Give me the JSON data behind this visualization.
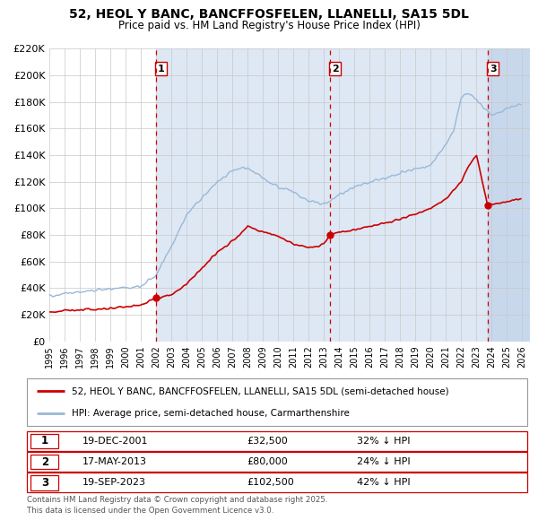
{
  "title": "52, HEOL Y BANC, BANCFFOSFELEN, LLANELLI, SA15 5DL",
  "subtitle": "Price paid vs. HM Land Registry's House Price Index (HPI)",
  "ylim": [
    0,
    220000
  ],
  "yticks": [
    0,
    20000,
    40000,
    60000,
    80000,
    100000,
    120000,
    140000,
    160000,
    180000,
    200000,
    220000
  ],
  "ytick_labels": [
    "£0",
    "£20K",
    "£40K",
    "£60K",
    "£80K",
    "£100K",
    "£120K",
    "£140K",
    "£160K",
    "£180K",
    "£200K",
    "£220K"
  ],
  "xlim_start": 1995.0,
  "xlim_end": 2026.5,
  "xticks": [
    1995,
    1996,
    1997,
    1998,
    1999,
    2000,
    2001,
    2002,
    2003,
    2004,
    2005,
    2006,
    2007,
    2008,
    2009,
    2010,
    2011,
    2012,
    2013,
    2014,
    2015,
    2016,
    2017,
    2018,
    2019,
    2020,
    2021,
    2022,
    2023,
    2024,
    2025,
    2026
  ],
  "hpi_color": "#9ab8d8",
  "price_color": "#cc0000",
  "sale_color": "#cc0000",
  "vline_color": "#cc0000",
  "shade_color": "#dde8f4",
  "shade_hatch_color": "#c8d8ec",
  "grid_color": "#c8c8c8",
  "background_color": "#ffffff",
  "sales": [
    {
      "label": "1",
      "date_decimal": 2001.97,
      "price": 32500,
      "date_str": "19-DEC-2001",
      "price_str": "£32,500",
      "hpi_diff": "32% ↓ HPI"
    },
    {
      "label": "2",
      "date_decimal": 2013.37,
      "price": 80000,
      "date_str": "17-MAY-2013",
      "price_str": "£80,000",
      "hpi_diff": "24% ↓ HPI"
    },
    {
      "label": "3",
      "date_decimal": 2023.72,
      "price": 102500,
      "date_str": "19-SEP-2023",
      "price_str": "£102,500",
      "hpi_diff": "42% ↓ HPI"
    }
  ],
  "legend_label_price": "52, HEOL Y BANC, BANCFFOSFELEN, LLANELLI, SA15 5DL (semi-detached house)",
  "legend_label_hpi": "HPI: Average price, semi-detached house, Carmarthenshire",
  "footer": "Contains HM Land Registry data © Crown copyright and database right 2025.\nThis data is licensed under the Open Government Licence v3.0."
}
